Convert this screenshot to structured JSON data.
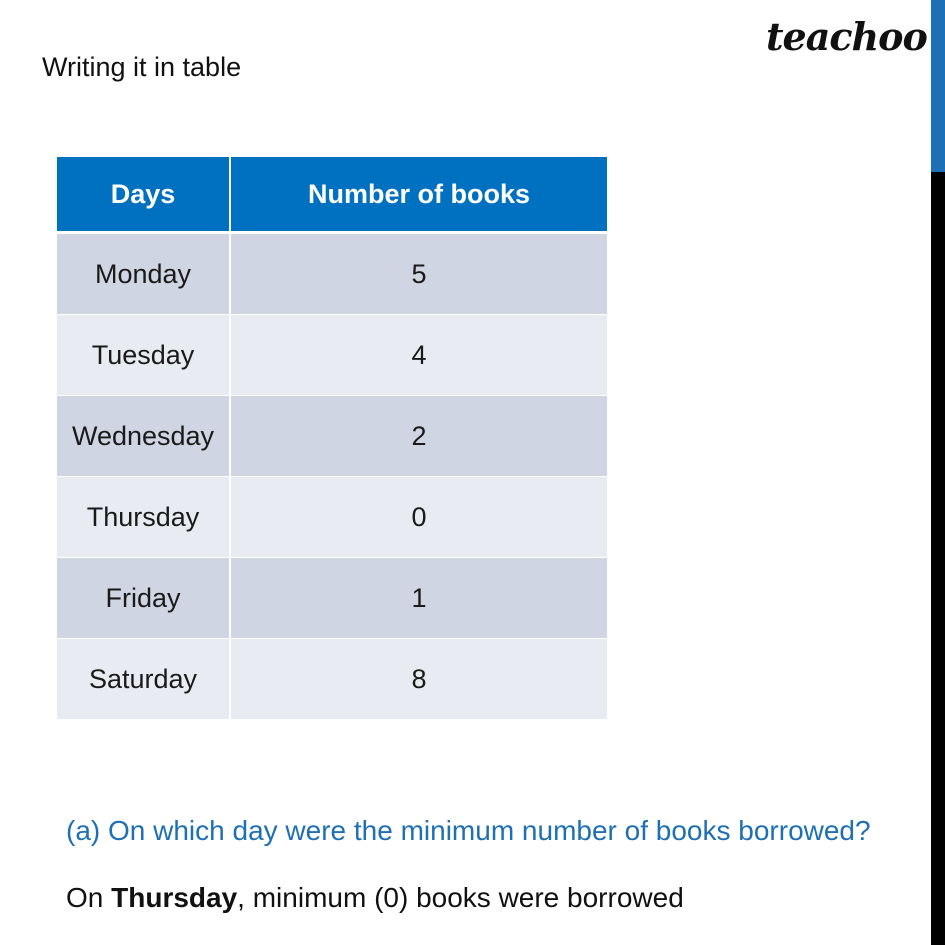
{
  "heading": "Writing it in table",
  "logo": "teachoo",
  "table": {
    "headers": [
      "Days",
      "Number of books"
    ],
    "rows": [
      [
        "Monday",
        "5"
      ],
      [
        "Tuesday",
        "4"
      ],
      [
        "Wednesday",
        "2"
      ],
      [
        "Thursday",
        "0"
      ],
      [
        "Friday",
        "1"
      ],
      [
        "Saturday",
        "8"
      ]
    ]
  },
  "question": "(a) On which day were the minimum number of books borrowed?",
  "answer": {
    "prefix": "On ",
    "emphasis": "Thursday",
    "suffix": ", minimum (0) books were borrowed"
  },
  "colors": {
    "header_bg": "#0070c0",
    "row_dark": "#cfd5e2",
    "row_light": "#e8ebf1",
    "question_text": "#1f6fb5",
    "scroll_thumb": "#1f6fb5"
  }
}
